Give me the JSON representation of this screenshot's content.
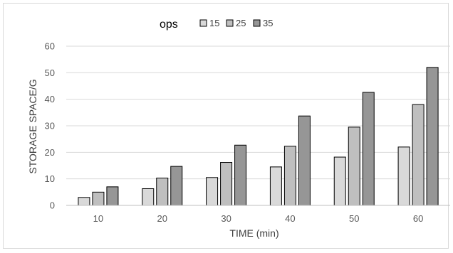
{
  "chart_data": {
    "type": "bar",
    "title": "",
    "legend_title": "ops",
    "legend_position": "top",
    "categories": [
      "10",
      "20",
      "30",
      "40",
      "50",
      "60"
    ],
    "series": [
      {
        "name": "15",
        "color": "#d9d9d9",
        "values": [
          3,
          6.3,
          10.5,
          14.5,
          18.2,
          22
        ]
      },
      {
        "name": "25",
        "color": "#bfbfbf",
        "values": [
          5,
          10.3,
          16.2,
          22.3,
          29.5,
          38
        ]
      },
      {
        "name": "35",
        "color": "#969696",
        "values": [
          7,
          14.7,
          22.7,
          33.7,
          42.6,
          52
        ]
      }
    ],
    "xlabel": "TIME (min)",
    "ylabel": "STORAGE SPACE/G",
    "ylim": [
      0,
      60
    ],
    "yticks": [
      "0",
      "10",
      "20",
      "30",
      "40",
      "50",
      "60"
    ],
    "grid": true
  }
}
